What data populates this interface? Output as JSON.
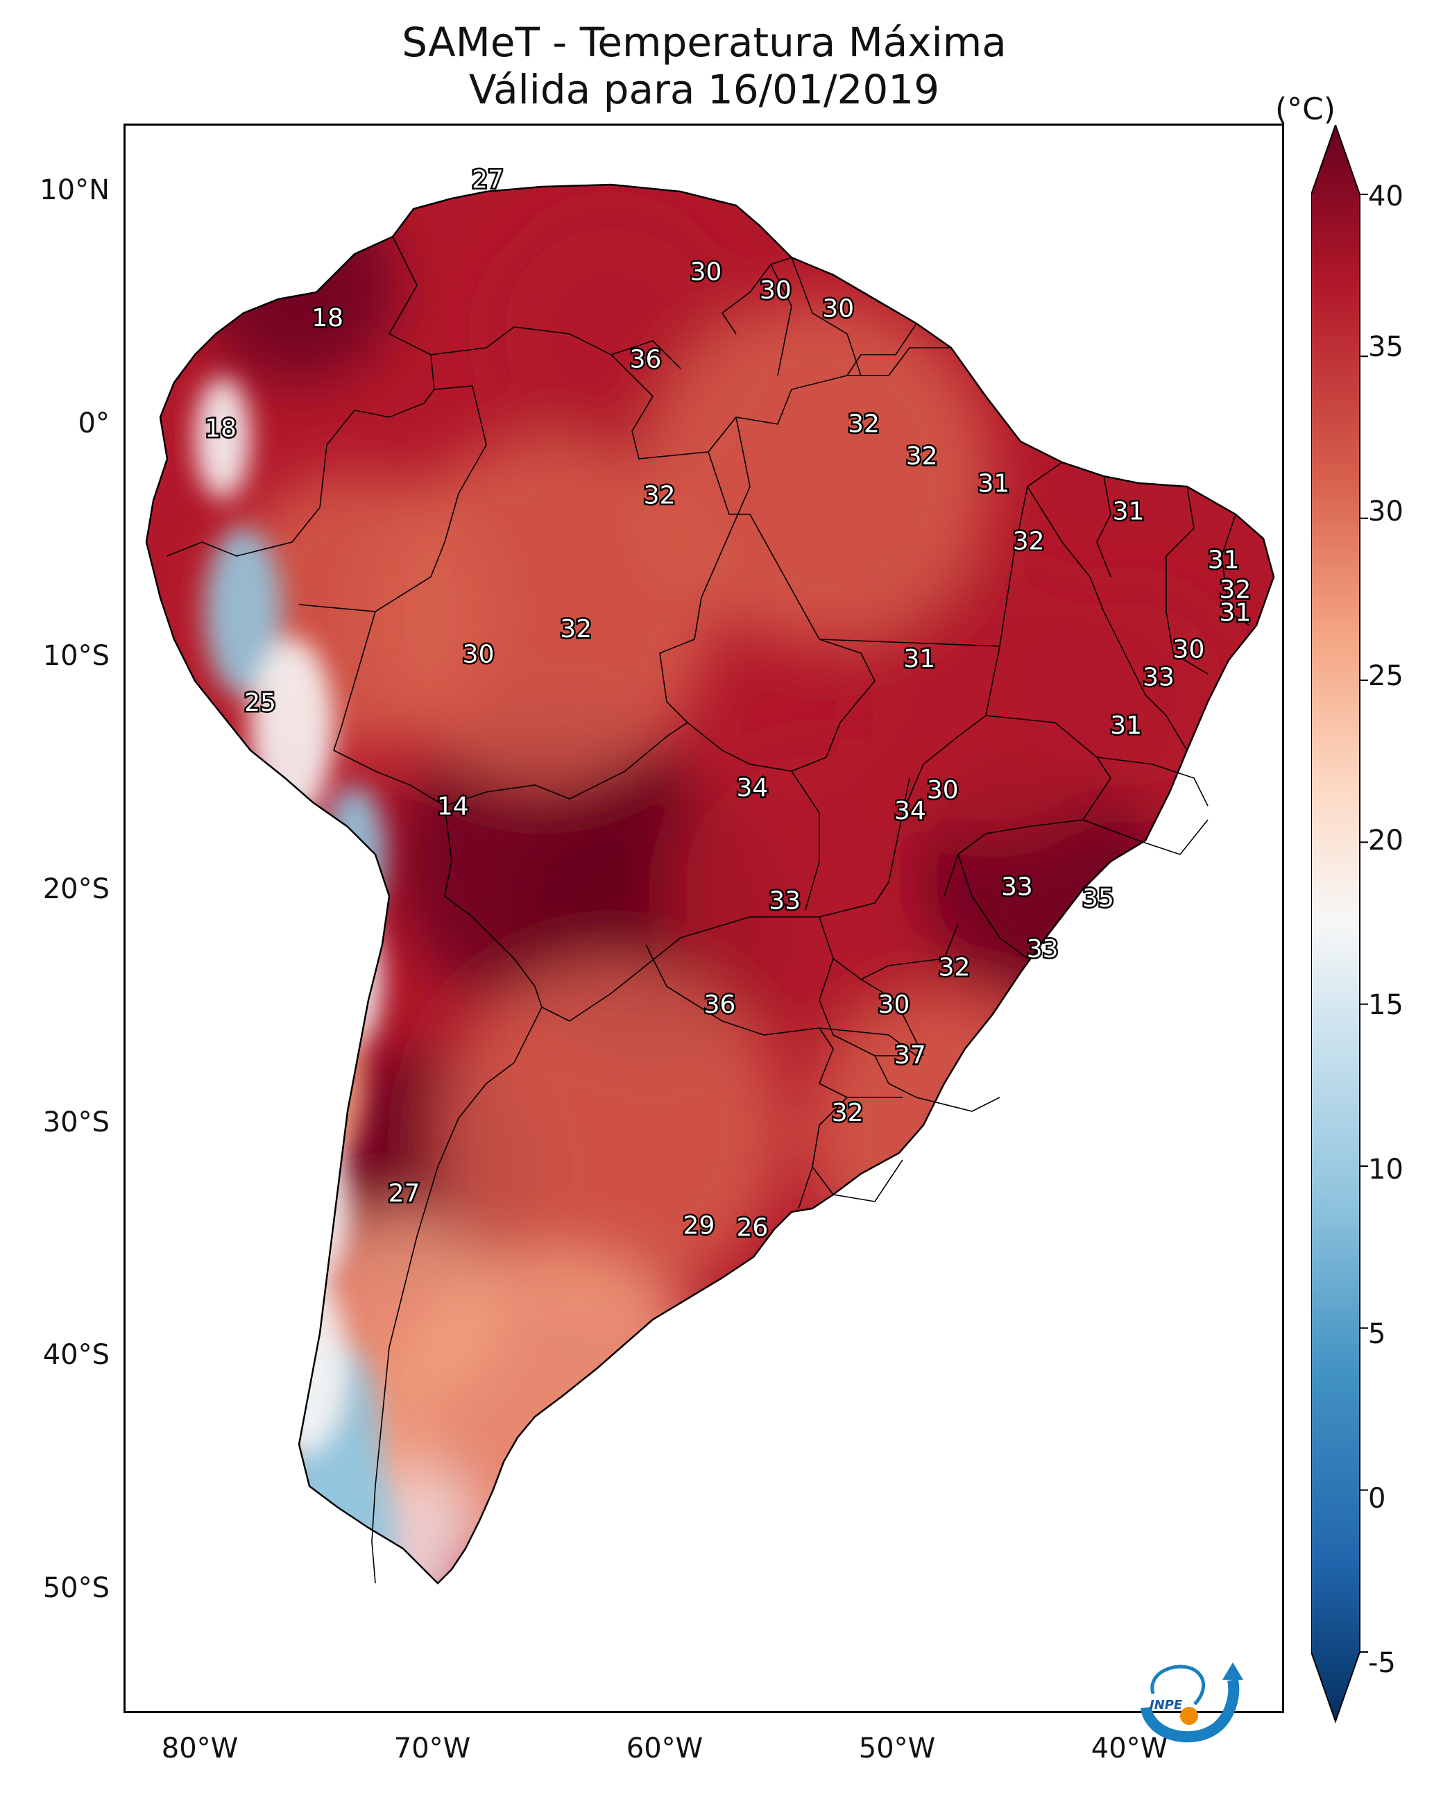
{
  "title_line1": "SAMeT - Temperatura Máxima",
  "title_line2": "Válida para 16/01/2019",
  "colorbar": {
    "unit": "(°C)",
    "ticks": [
      "40",
      "35",
      "30",
      "25",
      "20",
      "15",
      "10",
      "5",
      "0",
      "-5"
    ],
    "min": -5,
    "max": 40,
    "cmap": "RdBu_r"
  },
  "axes": {
    "lat_ticks": [
      "10°N",
      "0°",
      "10°S",
      "20°S",
      "30°S",
      "40°S",
      "50°S"
    ],
    "lon_ticks": [
      "80°W",
      "70°W",
      "60°W",
      "50°W",
      "40°W"
    ],
    "lon_range": [
      -83,
      -33
    ],
    "lat_range": [
      13,
      -56
    ]
  },
  "contour_labels": [
    {
      "text": "27",
      "lon": -67.4,
      "lat": 10.6
    },
    {
      "text": "18",
      "lon": -74.3,
      "lat": 4.6
    },
    {
      "text": "30",
      "lon": -58.0,
      "lat": 6.6
    },
    {
      "text": "30",
      "lon": -55.0,
      "lat": 5.8
    },
    {
      "text": "30",
      "lon": -52.3,
      "lat": 5.0
    },
    {
      "text": "36",
      "lon": -60.6,
      "lat": 2.8
    },
    {
      "text": "18",
      "lon": -78.9,
      "lat": -0.2
    },
    {
      "text": "32",
      "lon": -51.2,
      "lat": -0.0
    },
    {
      "text": "32",
      "lon": -48.7,
      "lat": -1.4
    },
    {
      "text": "32",
      "lon": -60.0,
      "lat": -3.1
    },
    {
      "text": "31",
      "lon": -45.6,
      "lat": -2.6
    },
    {
      "text": "31",
      "lon": -39.8,
      "lat": -3.8
    },
    {
      "text": "32",
      "lon": -44.1,
      "lat": -5.1
    },
    {
      "text": "31",
      "lon": -35.7,
      "lat": -5.9
    },
    {
      "text": "32",
      "lon": -35.2,
      "lat": -7.2
    },
    {
      "text": "31",
      "lon": -35.2,
      "lat": -8.2
    },
    {
      "text": "32",
      "lon": -63.6,
      "lat": -8.9
    },
    {
      "text": "30",
      "lon": -67.8,
      "lat": -10.0
    },
    {
      "text": "30",
      "lon": -37.2,
      "lat": -9.8
    },
    {
      "text": "31",
      "lon": -48.8,
      "lat": -10.2
    },
    {
      "text": "33",
      "lon": -38.5,
      "lat": -11.0
    },
    {
      "text": "25",
      "lon": -77.2,
      "lat": -12.1
    },
    {
      "text": "31",
      "lon": -39.9,
      "lat": -13.1
    },
    {
      "text": "34",
      "lon": -56.0,
      "lat": -15.8
    },
    {
      "text": "30",
      "lon": -47.8,
      "lat": -15.9
    },
    {
      "text": "34",
      "lon": -49.2,
      "lat": -16.8
    },
    {
      "text": "14",
      "lon": -68.9,
      "lat": -16.6
    },
    {
      "text": "33",
      "lon": -44.6,
      "lat": -20.1
    },
    {
      "text": "35",
      "lon": -41.1,
      "lat": -20.6
    },
    {
      "text": "33",
      "lon": -54.6,
      "lat": -20.7
    },
    {
      "text": "33",
      "lon": -43.5,
      "lat": -22.8
    },
    {
      "text": "32",
      "lon": -47.3,
      "lat": -23.6
    },
    {
      "text": "36",
      "lon": -57.4,
      "lat": -25.2
    },
    {
      "text": "30",
      "lon": -49.9,
      "lat": -25.2
    },
    {
      "text": "37",
      "lon": -49.2,
      "lat": -27.4
    },
    {
      "text": "32",
      "lon": -51.9,
      "lat": -29.9
    },
    {
      "text": "27",
      "lon": -71.0,
      "lat": -33.4
    },
    {
      "text": "29",
      "lon": -58.3,
      "lat": -34.8
    },
    {
      "text": "26",
      "lon": -56.0,
      "lat": -34.9
    }
  ],
  "colors": {
    "hot": "#b2182b",
    "very_hot": "#67001f",
    "warm": "#d6604d",
    "mild": "#f4a582",
    "neutral": "#f7f7f7",
    "cool": "#92c5de",
    "cold": "#2166ac"
  },
  "logo": {
    "text": "INPE"
  }
}
